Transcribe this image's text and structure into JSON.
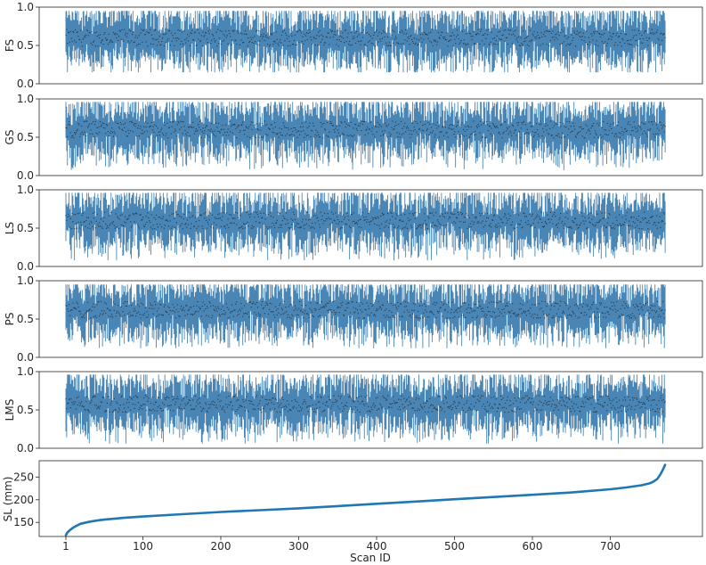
{
  "colors": {
    "bar": "#4a86b5",
    "point": "#111111",
    "line": "#1f77b4",
    "frame": "#262626"
  },
  "chart_data": [
    {
      "type": "errorbar",
      "ylabel": "FS",
      "ylim": [
        0.0,
        1.0
      ],
      "yticks": [
        "0.0",
        "0.5",
        "1.0"
      ],
      "n": 770,
      "mean_level": 0.6,
      "range": [
        0.15,
        0.95
      ]
    },
    {
      "type": "errorbar",
      "ylabel": "GS",
      "ylim": [
        0.0,
        1.0
      ],
      "yticks": [
        "0.0",
        "0.5",
        "1.0"
      ],
      "n": 770,
      "mean_level": 0.6,
      "range": [
        0.07,
        0.96
      ]
    },
    {
      "type": "errorbar",
      "ylabel": "LS",
      "ylim": [
        0.0,
        1.0
      ],
      "yticks": [
        "0.0",
        "0.5",
        "1.0"
      ],
      "n": 770,
      "mean_level": 0.6,
      "range": [
        0.08,
        0.96
      ]
    },
    {
      "type": "errorbar",
      "ylabel": "PS",
      "ylim": [
        0.0,
        1.0
      ],
      "yticks": [
        "0.0",
        "0.5",
        "1.0"
      ],
      "n": 770,
      "mean_level": 0.62,
      "range": [
        0.12,
        0.95
      ]
    },
    {
      "type": "errorbar",
      "ylabel": "LMS",
      "ylim": [
        0.0,
        1.0
      ],
      "yticks": [
        "0.0",
        "0.5",
        "1.0"
      ],
      "n": 770,
      "mean_level": 0.58,
      "range": [
        0.06,
        0.96
      ]
    },
    {
      "type": "line",
      "ylabel": "SL (mm)",
      "xlabel": "Scan ID",
      "ylim": [
        115,
        282
      ],
      "yticks": [
        "150",
        "200",
        "250"
      ],
      "xticks": [
        "1",
        "100",
        "200",
        "300",
        "400",
        "500",
        "600",
        "700"
      ],
      "x": [
        1,
        3,
        6,
        10,
        15,
        20,
        30,
        40,
        50,
        75,
        100,
        150,
        200,
        250,
        300,
        350,
        400,
        450,
        500,
        550,
        600,
        650,
        700,
        720,
        740,
        750,
        755,
        760,
        764,
        767,
        770
      ],
      "y": [
        122,
        128,
        133,
        138,
        143,
        147,
        151,
        154,
        156,
        160,
        163,
        168,
        173,
        177,
        181,
        186,
        191,
        196,
        201,
        206,
        211,
        216,
        223,
        227,
        232,
        236,
        240,
        246,
        256,
        266,
        277
      ]
    }
  ]
}
